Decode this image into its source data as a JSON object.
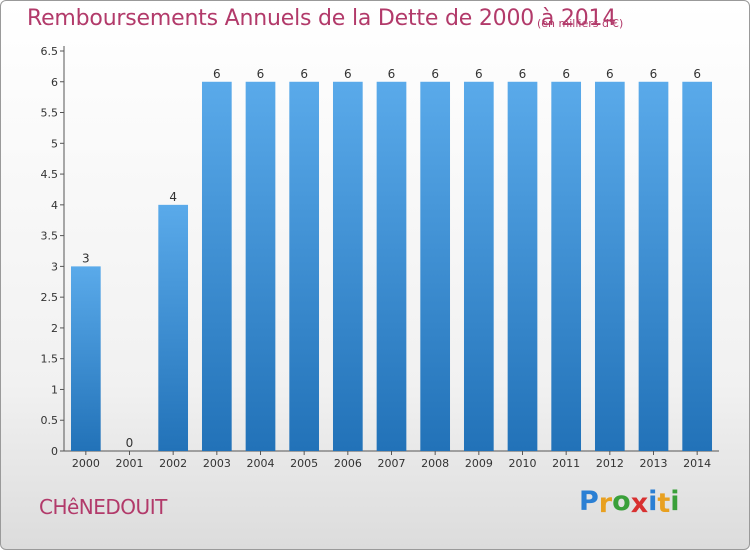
{
  "title": "Remboursements Annuels de la Dette de 2000 à 2014",
  "subtitle": "(en milliers d'€)",
  "city": "CHêNEDOUIT",
  "logo": {
    "letters": [
      "P",
      "r",
      "o",
      "x",
      "i",
      "t",
      "i"
    ],
    "colors": [
      "#2a7fd4",
      "#e8a020",
      "#3aa03a",
      "#d83030",
      "#2a7fd4",
      "#e8a020",
      "#3aa03a"
    ]
  },
  "colors": {
    "bar": "#3d95dd",
    "bar_dark": "#2277bb",
    "accent": "#b23a6a"
  },
  "chart_data": {
    "type": "bar",
    "title": "Remboursements Annuels de la Dette de 2000 à 2014",
    "subtitle": "(en milliers d'€)",
    "categories": [
      "2000",
      "2001",
      "2002",
      "2003",
      "2004",
      "2005",
      "2006",
      "2007",
      "2008",
      "2009",
      "2010",
      "2011",
      "2012",
      "2013",
      "2014"
    ],
    "values": [
      3,
      0,
      4,
      6,
      6,
      6,
      6,
      6,
      6,
      6,
      6,
      6,
      6,
      6,
      6
    ],
    "data_labels": [
      "3",
      "0",
      "4",
      "6",
      "6",
      "6",
      "6",
      "6",
      "6",
      "6",
      "6",
      "6",
      "6",
      "6",
      "6"
    ],
    "yticks": [
      "0",
      "0.5",
      "1",
      "1.5",
      "2",
      "2.5",
      "3",
      "3.5",
      "4",
      "4.5",
      "5",
      "5.5",
      "6",
      "6.5"
    ],
    "ylim": [
      0,
      6.5
    ],
    "grid": false,
    "xlabel": "",
    "ylabel": ""
  }
}
